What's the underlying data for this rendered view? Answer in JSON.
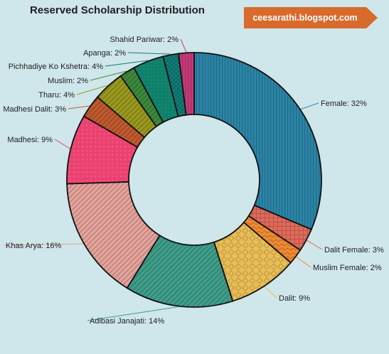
{
  "badge": {
    "text": "ceesarathi.blogspot.com",
    "color": "#d86a2c"
  },
  "chart_data": {
    "type": "pie",
    "donut": true,
    "title": "Reserved Scholarship Distribution",
    "legend": "none",
    "slices": [
      {
        "label": "Female",
        "value": 32,
        "display": "Female: 32%",
        "color": "#2b86a8",
        "pattern": "vertical-lines"
      },
      {
        "label": "Dalit Female",
        "value": 3,
        "display": "Dalit Female: 3%",
        "color": "#e06a5a",
        "pattern": "grid"
      },
      {
        "label": "Muslim Female",
        "value": 2,
        "display": "Muslim Female: 2%",
        "color": "#ee8a32",
        "pattern": "zigzag"
      },
      {
        "label": "Dalit",
        "value": 9,
        "display": "Dalit: 9%",
        "color": "#e8bd55",
        "pattern": "diamond"
      },
      {
        "label": "Adibasi Janajati",
        "value": 14,
        "display": "Adibasi Janajati: 14%",
        "color": "#3f9f8a",
        "pattern": "diagonal-lines"
      },
      {
        "label": "Khas Arya",
        "value": 16,
        "display": "Khas Arya: 16%",
        "color": "#e7a49c",
        "pattern": "diagonal-lines"
      },
      {
        "label": "Madhesi",
        "value": 9,
        "display": "Madhesi: 9%",
        "color": "#e8436f",
        "pattern": "squares"
      },
      {
        "label": "Madhesi Dalit",
        "value": 3,
        "display": "Madhesi Dalit: 3%",
        "color": "#c25a2e",
        "pattern": "diagonal-lines"
      },
      {
        "label": "Tharu",
        "value": 4,
        "display": "Tharu: 4%",
        "color": "#9a9a1e",
        "pattern": "diagonal-lines"
      },
      {
        "label": "Muslim",
        "value": 2,
        "display": "Muslim: 2%",
        "color": "#3c8a3c",
        "pattern": "diagonal-lines"
      },
      {
        "label": "Pichhadiye Ko Kshetra",
        "value": 4,
        "display": "Pichhadiye Ko Kshetra: 4%",
        "color": "#0f7f6a",
        "pattern": "dots"
      },
      {
        "label": "Apanga",
        "value": 2,
        "display": "Apanga: 2%",
        "color": "#11807a",
        "pattern": "checker"
      },
      {
        "label": "Shahid Pariwar",
        "value": 2,
        "display": "Shahid Pariwar: 2%",
        "color": "#c83a7a",
        "pattern": "vertical-lines"
      }
    ]
  }
}
